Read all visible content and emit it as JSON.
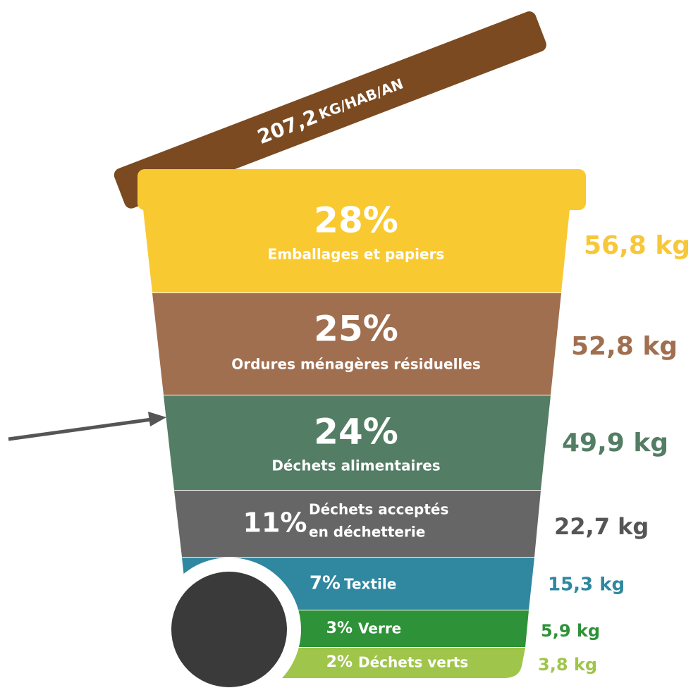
{
  "lid": {
    "value": "207,2",
    "unit": "KG/HAB/AN"
  },
  "segments": [
    {
      "percent": "28%",
      "label": "Emballages et papiers",
      "weight": "56,8 kg"
    },
    {
      "percent": "25%",
      "label": "Ordures ménagères résiduelles",
      "weight": "52,8 kg"
    },
    {
      "percent": "24%",
      "label": "Déchets alimentaires",
      "weight": "49,9 kg"
    },
    {
      "percent": "11%",
      "label_lines": [
        "Déchets acceptés",
        "en déchetterie"
      ],
      "weight": "22,7 kg"
    },
    {
      "percent": "7%",
      "label": "Textile",
      "weight": "15,3 kg"
    },
    {
      "percent": "3%",
      "label": "Verre",
      "weight": "5,9 kg"
    },
    {
      "percent": "2%",
      "label": "Déchets verts",
      "weight": "3,8 kg"
    }
  ]
}
